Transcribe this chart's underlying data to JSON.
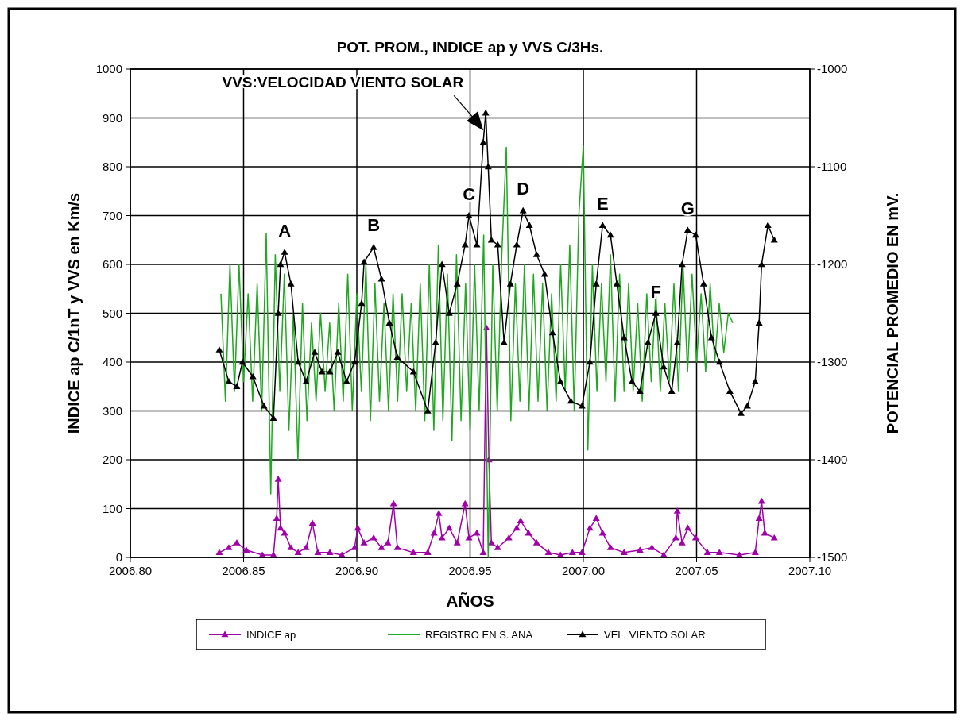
{
  "chart_data": {
    "type": "line",
    "title": "POT. PROM., INDICE ap y VVS C/3Hs.",
    "xlabel": "AÑOS",
    "ylabel": "INDICE ap C/1nT y VVS en Km/s",
    "y2label": "POTENCIAL PROMEDIO EN mV.",
    "xlim": [
      2006.8,
      2007.1
    ],
    "xticks": [
      {
        "value": 2006.8,
        "label": "2006.80"
      },
      {
        "value": 2006.85,
        "label": "2006.85"
      },
      {
        "value": 2006.9,
        "label": "2006.90"
      },
      {
        "value": 2006.95,
        "label": "2006.95"
      },
      {
        "value": 2007.0,
        "label": "2007.00"
      },
      {
        "value": 2007.05,
        "label": "2007.05"
      },
      {
        "value": 2007.1,
        "label": "2007.10"
      }
    ],
    "ylim": [
      0,
      1000
    ],
    "yticks": [
      0,
      100,
      200,
      300,
      400,
      500,
      600,
      700,
      800,
      900,
      1000
    ],
    "y2lim": [
      -1500,
      -1000
    ],
    "y2ticks": [
      -1500,
      -1400,
      -1300,
      -1200,
      -1100,
      -1000
    ],
    "grid": true,
    "legend": "bottom",
    "series": [
      {
        "name": "INDICE ap",
        "color": "#a000a8",
        "marker": "triangle",
        "x": [
          2006.8393,
          2006.8435,
          2006.847,
          2006.8512,
          2006.8583,
          2006.8632,
          2006.8646,
          2006.8653,
          2006.8663,
          2006.8681,
          2006.8709,
          2006.8741,
          2006.8776,
          2006.8804,
          2006.8828,
          2006.8881,
          2006.8934,
          2006.899,
          2006.9004,
          2006.9032,
          2006.9074,
          2006.9109,
          2006.9137,
          2006.9162,
          2006.9179,
          2006.925,
          2006.9313,
          2006.9341,
          2006.9362,
          2006.9376,
          2006.9408,
          2006.9443,
          2006.9478,
          2006.9495,
          2006.953,
          2006.9558,
          2006.9572,
          2006.9583,
          2006.9594,
          2006.9622,
          2006.9671,
          2006.9706,
          2006.9723,
          2006.9758,
          2006.9794,
          2006.9846,
          2006.9899,
          2006.9952,
          2006.9994,
          2007.0029,
          2007.0057,
          2007.0085,
          2007.012,
          2007.018,
          2007.025,
          2007.0303,
          2007.0355,
          2007.0408,
          2007.0415,
          2007.0436,
          2007.0461,
          2007.0496,
          2007.0548,
          2007.0601,
          2007.0689,
          2007.0759,
          2007.0776,
          2007.0787,
          2007.0801,
          2007.0843
        ],
        "values": [
          10,
          20,
          30,
          15,
          5,
          5,
          80,
          160,
          60,
          50,
          20,
          10,
          20,
          70,
          10,
          10,
          5,
          20,
          60,
          30,
          40,
          20,
          30,
          110,
          20,
          10,
          10,
          50,
          90,
          40,
          60,
          30,
          110,
          40,
          50,
          10,
          470,
          200,
          30,
          20,
          40,
          60,
          75,
          50,
          30,
          10,
          5,
          10,
          10,
          60,
          80,
          50,
          20,
          10,
          15,
          20,
          5,
          40,
          95,
          30,
          60,
          40,
          10,
          10,
          5,
          10,
          80,
          115,
          50,
          40
        ]
      },
      {
        "name": "REGISTRO EN S. ANA",
        "color": "#20a820",
        "marker": "none",
        "axis": "y2",
        "x": [
          2006.84,
          2006.842,
          2006.844,
          2006.846,
          2006.848,
          2006.85,
          2006.852,
          2006.854,
          2006.856,
          2006.858,
          2006.86,
          2006.862,
          2006.864,
          2006.866,
          2006.868,
          2006.87,
          2006.872,
          2006.874,
          2006.876,
          2006.878,
          2006.88,
          2006.882,
          2006.884,
          2006.886,
          2006.888,
          2006.89,
          2006.892,
          2006.894,
          2006.896,
          2006.898,
          2006.9,
          2006.902,
          2006.904,
          2006.906,
          2006.908,
          2006.91,
          2006.912,
          2006.914,
          2006.916,
          2006.918,
          2006.92,
          2006.922,
          2006.924,
          2006.926,
          2006.928,
          2006.93,
          2006.932,
          2006.934,
          2006.936,
          2006.938,
          2006.94,
          2006.942,
          2006.944,
          2006.946,
          2006.948,
          2006.95,
          2006.952,
          2006.954,
          2006.956,
          2006.958,
          2006.96,
          2006.962,
          2006.964,
          2006.966,
          2006.968,
          2006.97,
          2006.972,
          2006.974,
          2006.976,
          2006.978,
          2006.98,
          2006.982,
          2006.984,
          2006.986,
          2006.988,
          2006.99,
          2006.992,
          2006.994,
          2006.996,
          2006.998,
          2007.0,
          2007.002,
          2007.004,
          2007.006,
          2007.008,
          2007.01,
          2007.012,
          2007.014,
          2007.016,
          2007.018,
          2007.02,
          2007.022,
          2007.024,
          2007.026,
          2007.028,
          2007.03,
          2007.032,
          2007.034,
          2007.036,
          2007.038,
          2007.04,
          2007.042,
          2007.044,
          2007.046,
          2007.048,
          2007.05,
          2007.052,
          2007.054,
          2007.056,
          2007.058,
          2007.06,
          2007.062,
          2007.064,
          2007.066
        ],
        "values": [
          -1230,
          -1340,
          -1200,
          -1330,
          -1200,
          -1320,
          -1230,
          -1340,
          -1220,
          -1350,
          -1168,
          -1435,
          -1190,
          -1330,
          -1210,
          -1370,
          -1250,
          -1400,
          -1240,
          -1360,
          -1260,
          -1340,
          -1250,
          -1330,
          -1260,
          -1350,
          -1240,
          -1340,
          -1210,
          -1350,
          -1230,
          -1330,
          -1200,
          -1360,
          -1220,
          -1340,
          -1240,
          -1350,
          -1230,
          -1340,
          -1230,
          -1330,
          -1240,
          -1350,
          -1220,
          -1360,
          -1200,
          -1370,
          -1180,
          -1360,
          -1210,
          -1380,
          -1190,
          -1360,
          -1220,
          -1370,
          -1200,
          -1350,
          -1170,
          -1500,
          -1200,
          -1350,
          -1190,
          -1080,
          -1360,
          -1220,
          -1340,
          -1200,
          -1350,
          -1210,
          -1340,
          -1220,
          -1350,
          -1230,
          -1340,
          -1200,
          -1330,
          -1180,
          -1350,
          -1150,
          -1078,
          -1390,
          -1200,
          -1330,
          -1220,
          -1320,
          -1190,
          -1340,
          -1210,
          -1330,
          -1220,
          -1330,
          -1240,
          -1340,
          -1230,
          -1320,
          -1230,
          -1330,
          -1240,
          -1320,
          -1220,
          -1330,
          -1200,
          -1310,
          -1210,
          -1300,
          -1230,
          -1310,
          -1220,
          -1300,
          -1240,
          -1290,
          -1250,
          -1260
        ]
      },
      {
        "name": "VEL. VIENTO SOLAR",
        "color": "#000000",
        "marker": "triangle",
        "x": [
          2006.8393,
          2006.8435,
          2006.847,
          2006.8495,
          2006.8541,
          2006.859,
          2006.8632,
          2006.8653,
          2006.8663,
          2006.8681,
          2006.8709,
          2006.8741,
          2006.8776,
          2006.8814,
          2006.8846,
          2006.8881,
          2006.8916,
          2006.8955,
          2006.899,
          2006.9021,
          2006.9032,
          2006.9074,
          2006.9109,
          2006.9144,
          2006.9179,
          2006.925,
          2006.9313,
          2006.9348,
          2006.9376,
          2006.9408,
          2006.9443,
          2006.9478,
          2006.9495,
          2006.953,
          2006.9558,
          2006.9569,
          2006.958,
          2006.9594,
          2006.9622,
          2006.965,
          2006.9678,
          2006.9706,
          2006.9734,
          2006.9762,
          2006.9794,
          2006.9829,
          2006.9864,
          2006.9899,
          2006.9945,
          2006.9994,
          2007.0029,
          2007.0057,
          2007.0085,
          2007.012,
          2007.0148,
          2007.018,
          2007.0215,
          2007.025,
          2007.0285,
          2007.032,
          2007.0355,
          2007.039,
          2007.0415,
          2007.0436,
          2007.0461,
          2007.0496,
          2007.0531,
          2007.0566,
          2007.0601,
          2007.0647,
          2007.0696,
          2007.0724,
          2007.0759,
          2007.0776,
          2007.0787,
          2007.0815,
          2007.0843
        ],
        "values": [
          425,
          360,
          350,
          400,
          370,
          310,
          285,
          500,
          600,
          625,
          560,
          400,
          360,
          420,
          380,
          380,
          420,
          360,
          400,
          520,
          605,
          635,
          570,
          480,
          410,
          380,
          300,
          440,
          600,
          500,
          560,
          640,
          700,
          640,
          850,
          910,
          800,
          650,
          640,
          440,
          560,
          640,
          710,
          680,
          620,
          580,
          460,
          360,
          320,
          310,
          400,
          560,
          680,
          660,
          560,
          450,
          360,
          340,
          440,
          500,
          390,
          340,
          440,
          600,
          670,
          660,
          560,
          450,
          400,
          340,
          295,
          310,
          360,
          480,
          600,
          680,
          650
        ]
      }
    ],
    "annotations": [
      {
        "text": "VVS:VELOCIDAD VIENTO SOLAR",
        "x": 2006.9569,
        "y": 910
      },
      {
        "text": "A",
        "x": 2006.8681,
        "y": 625
      },
      {
        "text": "B",
        "x": 2006.9074,
        "y": 635
      },
      {
        "text": "C",
        "x": 2006.9495,
        "y": 700
      },
      {
        "text": "D",
        "x": 2006.9734,
        "y": 710
      },
      {
        "text": "E",
        "x": 2007.0085,
        "y": 680
      },
      {
        "text": "F",
        "x": 2007.032,
        "y": 500
      },
      {
        "text": "G",
        "x": 2007.0461,
        "y": 670
      }
    ]
  }
}
